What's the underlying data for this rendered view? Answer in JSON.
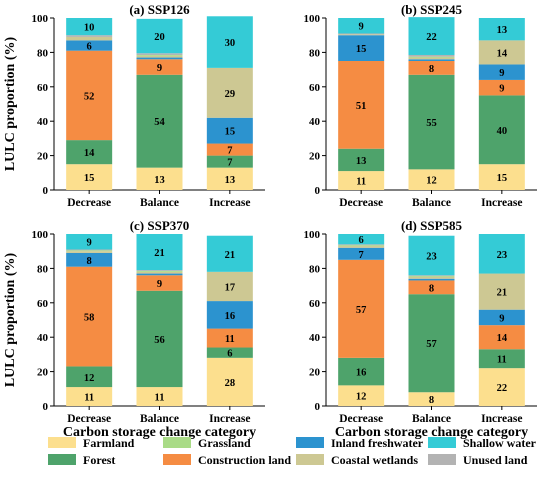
{
  "chart_data": {
    "type": "bar",
    "stacked": true,
    "ylabel": "LULC proportion (%)",
    "xlabel": "Carbon storage change category",
    "ylim": [
      0,
      100
    ],
    "yticks": [
      0,
      20,
      40,
      60,
      80,
      100
    ],
    "grid": false,
    "categories": [
      "Decrease",
      "Balance",
      "Increase"
    ],
    "legend": {
      "position": "bottom",
      "items": [
        {
          "name": "Farmland",
          "color": "#fcdf8e"
        },
        {
          "name": "Forest",
          "color": "#4ea36b"
        },
        {
          "name": "Grassland",
          "color": "#a9db87"
        },
        {
          "name": "Construction land",
          "color": "#f58c43"
        },
        {
          "name": "Inland freshwater",
          "color": "#2c93cf"
        },
        {
          "name": "Coastal wetlands",
          "color": "#cdc893"
        },
        {
          "name": "Shallow water",
          "color": "#34cbd6"
        },
        {
          "name": "Unused land",
          "color": "#b3b3b3"
        }
      ]
    },
    "stack_order": [
      "Farmland",
      "Forest",
      "Construction land",
      "Inland freshwater",
      "Coastal wetlands",
      "Grassland",
      "Unused land",
      "Shallow water"
    ],
    "panels": [
      {
        "title": "(a) SSP126",
        "series": [
          {
            "name": "Farmland",
            "values": [
              15,
              13,
              13
            ]
          },
          {
            "name": "Forest",
            "values": [
              14,
              54,
              7
            ]
          },
          {
            "name": "Construction land",
            "values": [
              52,
              9,
              7
            ]
          },
          {
            "name": "Inland freshwater",
            "values": [
              6,
              1,
              15
            ]
          },
          {
            "name": "Coastal wetlands",
            "values": [
              2,
              1,
              29
            ]
          },
          {
            "name": "Grassland",
            "values": [
              0,
              0.5,
              0
            ]
          },
          {
            "name": "Unused land",
            "values": [
              1,
              1,
              0
            ]
          },
          {
            "name": "Shallow water",
            "values": [
              10,
              20,
              30
            ]
          }
        ],
        "labels": [
          {
            "name": "Farmland",
            "values": [
              "15",
              "13",
              "13"
            ]
          },
          {
            "name": "Forest",
            "values": [
              "14",
              "54",
              "7"
            ]
          },
          {
            "name": "Construction land",
            "values": [
              "52",
              "9",
              "7"
            ]
          },
          {
            "name": "Inland freshwater",
            "values": [
              "6",
              "",
              "15"
            ]
          },
          {
            "name": "Coastal wetlands",
            "values": [
              "",
              "",
              "29"
            ]
          },
          {
            "name": "Shallow water",
            "values": [
              "10",
              "20",
              "30"
            ]
          }
        ]
      },
      {
        "title": "(b) SSP245",
        "series": [
          {
            "name": "Farmland",
            "values": [
              11,
              12,
              15
            ]
          },
          {
            "name": "Forest",
            "values": [
              13,
              55,
              40
            ]
          },
          {
            "name": "Construction land",
            "values": [
              51,
              8,
              9
            ]
          },
          {
            "name": "Inland freshwater",
            "values": [
              15,
              1,
              9
            ]
          },
          {
            "name": "Coastal wetlands",
            "values": [
              0.5,
              1,
              14
            ]
          },
          {
            "name": "Grassland",
            "values": [
              0,
              0.5,
              0
            ]
          },
          {
            "name": "Unused land",
            "values": [
              0.5,
              1,
              0
            ]
          },
          {
            "name": "Shallow water",
            "values": [
              9,
              22,
              13
            ]
          }
        ],
        "labels": [
          {
            "name": "Farmland",
            "values": [
              "11",
              "12",
              "15"
            ]
          },
          {
            "name": "Forest",
            "values": [
              "13",
              "55",
              "40"
            ]
          },
          {
            "name": "Construction land",
            "values": [
              "51",
              "8",
              "9"
            ]
          },
          {
            "name": "Inland freshwater",
            "values": [
              "15",
              "",
              "9"
            ]
          },
          {
            "name": "Coastal wetlands",
            "values": [
              "",
              "",
              "14"
            ]
          },
          {
            "name": "Shallow water",
            "values": [
              "9",
              "22",
              "13"
            ]
          }
        ]
      },
      {
        "title": "(c) SSP370",
        "series": [
          {
            "name": "Farmland",
            "values": [
              11,
              11,
              28
            ]
          },
          {
            "name": "Forest",
            "values": [
              12,
              56,
              6
            ]
          },
          {
            "name": "Construction land",
            "values": [
              58,
              9,
              11
            ]
          },
          {
            "name": "Inland freshwater",
            "values": [
              8,
              1,
              16
            ]
          },
          {
            "name": "Coastal wetlands",
            "values": [
              1,
              1,
              17
            ]
          },
          {
            "name": "Grassland",
            "values": [
              0.5,
              0.5,
              0
            ]
          },
          {
            "name": "Unused land",
            "values": [
              0.5,
              0.5,
              0
            ]
          },
          {
            "name": "Shallow water",
            "values": [
              9,
              21,
              21
            ]
          }
        ],
        "labels": [
          {
            "name": "Farmland",
            "values": [
              "11",
              "11",
              "28"
            ]
          },
          {
            "name": "Forest",
            "values": [
              "12",
              "56",
              "6"
            ]
          },
          {
            "name": "Construction land",
            "values": [
              "58",
              "9",
              "11"
            ]
          },
          {
            "name": "Inland freshwater",
            "values": [
              "8",
              "",
              "16"
            ]
          },
          {
            "name": "Coastal wetlands",
            "values": [
              "",
              "",
              "17"
            ]
          },
          {
            "name": "Shallow water",
            "values": [
              "9",
              "21",
              "21"
            ]
          }
        ]
      },
      {
        "title": "(d) SSP585",
        "series": [
          {
            "name": "Farmland",
            "values": [
              12,
              8,
              22
            ]
          },
          {
            "name": "Forest",
            "values": [
              16,
              57,
              11
            ]
          },
          {
            "name": "Construction land",
            "values": [
              57,
              8,
              14
            ]
          },
          {
            "name": "Inland freshwater",
            "values": [
              7,
              1,
              9
            ]
          },
          {
            "name": "Coastal wetlands",
            "values": [
              1,
              1,
              21
            ]
          },
          {
            "name": "Grassland",
            "values": [
              0.5,
              0.5,
              0
            ]
          },
          {
            "name": "Unused land",
            "values": [
              0.5,
              0.5,
              0
            ]
          },
          {
            "name": "Shallow water",
            "values": [
              6,
              23,
              23
            ]
          }
        ],
        "labels": [
          {
            "name": "Farmland",
            "values": [
              "12",
              "8",
              "22"
            ]
          },
          {
            "name": "Forest",
            "values": [
              "16",
              "57",
              "11"
            ]
          },
          {
            "name": "Construction land",
            "values": [
              "57",
              "8",
              "14"
            ]
          },
          {
            "name": "Inland freshwater",
            "values": [
              "7",
              "",
              "9"
            ]
          },
          {
            "name": "Coastal wetlands",
            "values": [
              "",
              "",
              "21"
            ]
          },
          {
            "name": "Shallow water",
            "values": [
              "6",
              "23",
              "23"
            ]
          }
        ]
      }
    ]
  }
}
